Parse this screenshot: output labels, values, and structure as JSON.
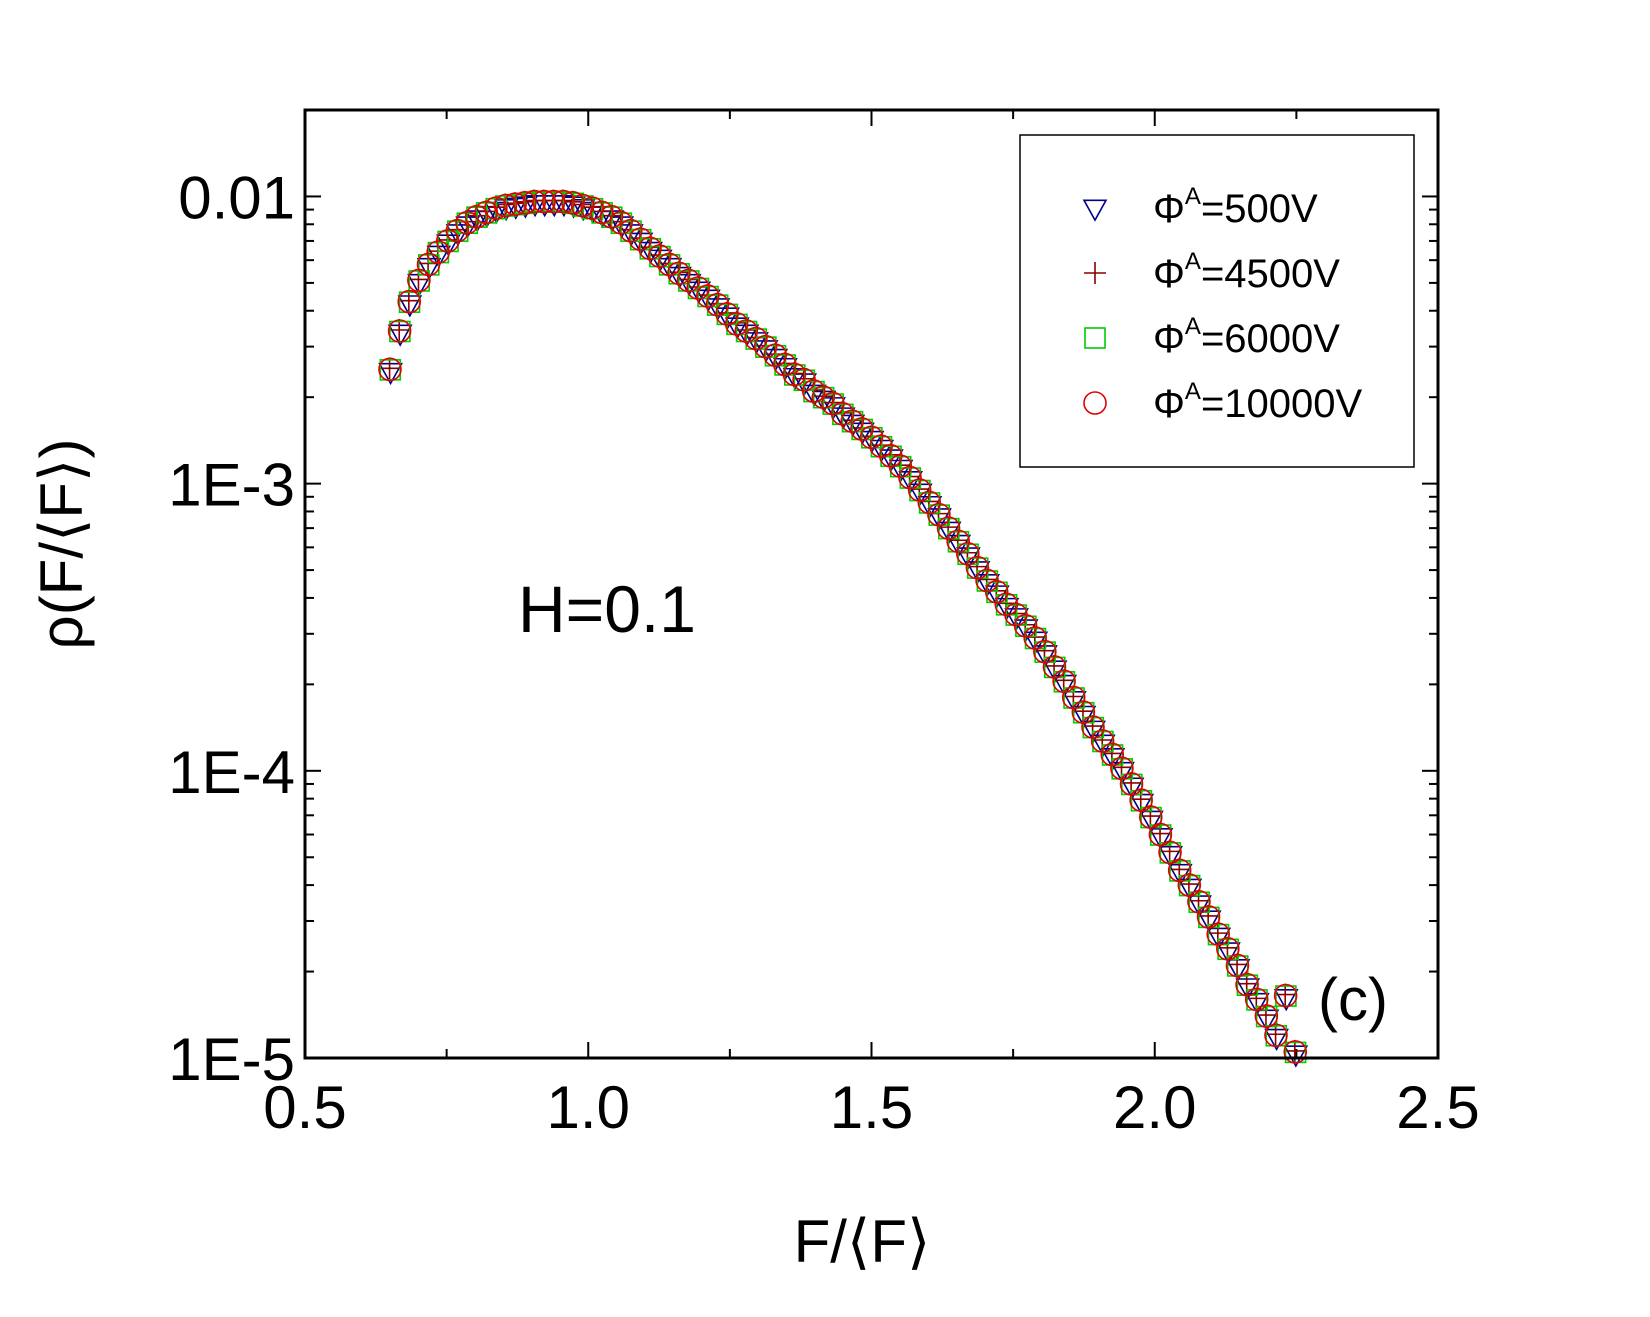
{
  "chart_data": {
    "type": "scatter",
    "title": "",
    "xlabel": "F/⟨F⟩",
    "ylabel": "ρ(F/⟨F⟩)",
    "xscale": "linear",
    "yscale": "log",
    "xlim": [
      0.5,
      2.5
    ],
    "ylim": [
      1e-05,
      0.02
    ],
    "x_major_ticks": [
      0.5,
      1.0,
      1.5,
      2.0,
      2.5
    ],
    "x_tick_labels": [
      "0.5",
      "1.0",
      "1.5",
      "2.0",
      "2.5"
    ],
    "y_major_ticks": [
      1e-05,
      0.0001,
      0.001,
      0.01
    ],
    "y_tick_labels": [
      "1E-5",
      "1E-4",
      "1E-3",
      "0.01"
    ],
    "annotations": {
      "param": "H=0.1",
      "panel": "(c)"
    },
    "legend_position": "top-right",
    "series": [
      {
        "name": "Φ",
        "sup": "A",
        "suffix": "=500V",
        "marker": "triangle-down",
        "color": "#00008B"
      },
      {
        "name": "Φ",
        "sup": "A",
        "suffix": "=4500V",
        "marker": "plus",
        "color": "#8B0000"
      },
      {
        "name": "Φ",
        "sup": "A",
        "suffix": "=6000V",
        "marker": "square",
        "color": "#00CC00"
      },
      {
        "name": "Φ",
        "sup": "A",
        "suffix": "=10000V",
        "marker": "circle",
        "color": "#E00000"
      }
    ],
    "x": [
      0.65,
      0.667,
      0.684,
      0.701,
      0.718,
      0.735,
      0.752,
      0.769,
      0.786,
      0.803,
      0.82,
      0.837,
      0.854,
      0.871,
      0.888,
      0.905,
      0.922,
      0.939,
      0.956,
      0.973,
      0.99,
      1.007,
      1.024,
      1.041,
      1.058,
      1.075,
      1.092,
      1.109,
      1.126,
      1.143,
      1.16,
      1.177,
      1.194,
      1.211,
      1.228,
      1.245,
      1.262,
      1.279,
      1.296,
      1.313,
      1.33,
      1.347,
      1.364,
      1.381,
      1.398,
      1.415,
      1.432,
      1.449,
      1.466,
      1.483,
      1.5,
      1.517,
      1.534,
      1.551,
      1.568,
      1.585,
      1.602,
      1.619,
      1.636,
      1.653,
      1.67,
      1.687,
      1.704,
      1.721,
      1.738,
      1.755,
      1.772,
      1.789,
      1.806,
      1.823,
      1.84,
      1.857,
      1.874,
      1.891,
      1.908,
      1.925,
      1.942,
      1.959,
      1.976,
      1.993,
      2.01,
      2.027,
      2.044,
      2.061,
      2.078,
      2.095,
      2.112,
      2.129,
      2.146,
      2.163,
      2.18,
      2.197,
      2.214,
      2.231,
      2.248
    ],
    "y": [
      0.0025,
      0.0034,
      0.0043,
      0.0051,
      0.0058,
      0.0064,
      0.007,
      0.0076,
      0.0081,
      0.0085,
      0.0088,
      0.0091,
      0.0093,
      0.0094,
      0.0095,
      0.0096,
      0.0096,
      0.0096,
      0.0096,
      0.0095,
      0.0093,
      0.0091,
      0.0088,
      0.0085,
      0.0081,
      0.0076,
      0.0071,
      0.0066,
      0.0062,
      0.0058,
      0.0054,
      0.0051,
      0.0048,
      0.0045,
      0.0042,
      0.0039,
      0.0036,
      0.0034,
      0.0032,
      0.003,
      0.0028,
      0.0026,
      0.0024,
      0.0023,
      0.0021,
      0.002,
      0.0019,
      0.00175,
      0.00165,
      0.00155,
      0.00145,
      0.00135,
      0.00125,
      0.00115,
      0.00105,
      0.00095,
      0.00086,
      0.00078,
      0.0007,
      0.00063,
      0.00057,
      0.00051,
      0.00046,
      0.00042,
      0.00038,
      0.00035,
      0.00032,
      0.00029,
      0.00026,
      0.00023,
      0.000205,
      0.00018,
      0.00016,
      0.000142,
      0.000127,
      0.000114,
      0.000102,
      9e-05,
      7.9e-05,
      6.9e-05,
      6e-05,
      5.2e-05,
      4.5e-05,
      4e-05,
      3.5e-05,
      3.1e-05,
      2.7e-05,
      2.4e-05,
      2.1e-05,
      1.8e-05,
      1.6e-05,
      1.4e-05,
      1.2e-05,
      1.65e-05,
      1.05e-05
    ]
  }
}
